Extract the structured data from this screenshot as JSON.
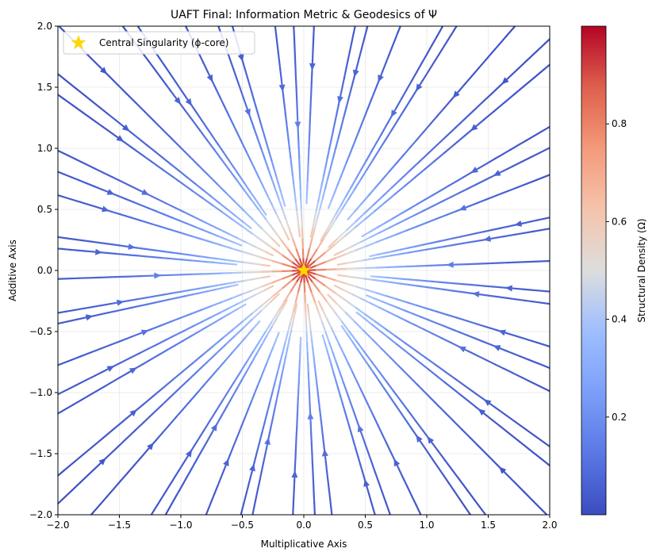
{
  "chart_data": {
    "type": "streamplot",
    "title": "UAFT Final: Information Metric & Geodesics of Ψ",
    "xlabel": "Multiplicative Axis",
    "ylabel": "Additive Axis",
    "xlim": [
      -2.0,
      2.0
    ],
    "ylim": [
      -2.0,
      2.0
    ],
    "xticks": [
      "−2.0",
      "−1.5",
      "−1.0",
      "−0.5",
      "0.0",
      "0.5",
      "1.0",
      "1.5",
      "2.0"
    ],
    "yticks": [
      "−2.0",
      "−1.5",
      "−1.0",
      "−0.5",
      "0.0",
      "0.5",
      "1.0",
      "1.5",
      "2.0"
    ],
    "grid": true,
    "flow": "radial streamlines converging toward the origin",
    "singularity": {
      "x": 0.0,
      "y": 0.0,
      "marker": "star",
      "color": "#ffd700"
    },
    "legend": {
      "placement": "upper-left",
      "entries": [
        "Central Singularity (ϕ-core)"
      ]
    },
    "colorbar": {
      "label": "Structural Density (Ω)",
      "colormap": "coolwarm",
      "range": [
        0.0,
        1.0
      ],
      "ticks": [
        "0.2",
        "0.4",
        "0.6",
        "0.8"
      ]
    },
    "colors": {
      "low": "#3b4cc0",
      "mid": "#dddddd",
      "high": "#b40426"
    }
  }
}
